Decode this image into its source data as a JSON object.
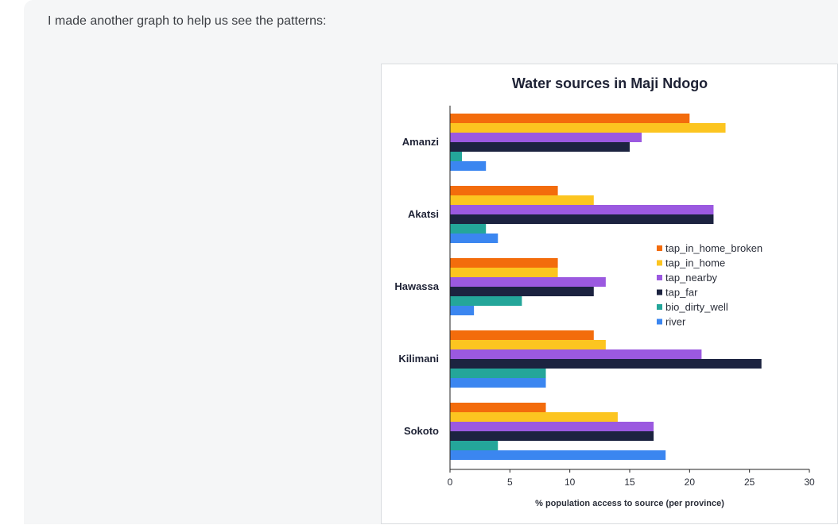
{
  "message": {
    "text": "I made another graph to help us see the patterns:"
  },
  "colors": {
    "tap_in_home_broken": "#f36c0c",
    "tap_in_home": "#fcc520",
    "tap_nearby": "#9b59e0",
    "tap_far": "#1c2340",
    "bio_dirty_well": "#24a69a",
    "river": "#3b86f0"
  },
  "chart_data": {
    "type": "bar",
    "orientation": "horizontal",
    "title": "Water sources in Maji Ndogo",
    "xlabel": "% population access to source (per province)",
    "ylabel": "",
    "xlim": [
      0,
      30
    ],
    "xticks": [
      0,
      5,
      10,
      15,
      20,
      25,
      30
    ],
    "grid": false,
    "legend_position": "right",
    "categories": [
      "Amanzi",
      "Akatsi",
      "Hawassa",
      "Kilimani",
      "Sokoto"
    ],
    "series": [
      {
        "name": "tap_in_home_broken",
        "values": [
          20,
          9,
          9,
          12,
          8
        ]
      },
      {
        "name": "tap_in_home",
        "values": [
          23,
          12,
          9,
          13,
          14
        ]
      },
      {
        "name": "tap_nearby",
        "values": [
          16,
          22,
          13,
          21,
          17
        ]
      },
      {
        "name": "tap_far",
        "values": [
          15,
          22,
          12,
          26,
          17
        ]
      },
      {
        "name": "bio_dirty_well",
        "values": [
          1,
          3,
          6,
          8,
          4
        ]
      },
      {
        "name": "river",
        "values": [
          3,
          4,
          2,
          8,
          18
        ]
      }
    ]
  }
}
